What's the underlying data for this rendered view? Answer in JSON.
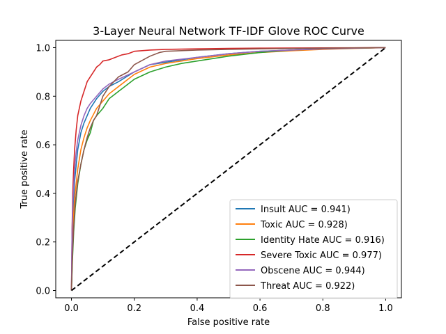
{
  "chart_data": {
    "type": "line",
    "title": "3-Layer Neural Network TF-IDF Glove ROC Curve",
    "xlabel": "False positive rate",
    "ylabel": "True positive rate",
    "xlim": [
      -0.05,
      1.05
    ],
    "ylim": [
      -0.03,
      1.03
    ],
    "xticks": [
      0.0,
      0.2,
      0.4,
      0.6,
      0.8,
      1.0
    ],
    "xtick_labels": [
      "0.0",
      "0.2",
      "0.4",
      "0.6",
      "0.8",
      "1.0"
    ],
    "yticks": [
      0.0,
      0.2,
      0.4,
      0.6,
      0.8,
      1.0
    ],
    "ytick_labels": [
      "0.0",
      "0.2",
      "0.4",
      "0.6",
      "0.8",
      "1.0"
    ],
    "grid": false,
    "legend_position": "lower-right",
    "series": [
      {
        "name": "Insult AUC = 0.941)",
        "color": "#1f77b4",
        "x": [
          0,
          0.002,
          0.005,
          0.01,
          0.02,
          0.03,
          0.04,
          0.05,
          0.06,
          0.08,
          0.1,
          0.12,
          0.15,
          0.2,
          0.25,
          0.3,
          0.4,
          0.5,
          0.6,
          0.7,
          0.8,
          0.9,
          1.0
        ],
        "y": [
          0,
          0.2,
          0.33,
          0.45,
          0.58,
          0.65,
          0.69,
          0.72,
          0.75,
          0.79,
          0.82,
          0.84,
          0.86,
          0.9,
          0.93,
          0.94,
          0.96,
          0.975,
          0.985,
          0.99,
          0.995,
          0.998,
          1.0
        ]
      },
      {
        "name": "Toxic AUC = 0.928)",
        "color": "#ff7f0e",
        "x": [
          0,
          0.002,
          0.005,
          0.01,
          0.02,
          0.03,
          0.04,
          0.05,
          0.06,
          0.08,
          0.1,
          0.12,
          0.15,
          0.2,
          0.25,
          0.3,
          0.4,
          0.5,
          0.6,
          0.7,
          0.8,
          0.9,
          1.0
        ],
        "y": [
          0,
          0.15,
          0.27,
          0.38,
          0.5,
          0.58,
          0.63,
          0.67,
          0.7,
          0.75,
          0.78,
          0.81,
          0.84,
          0.89,
          0.92,
          0.935,
          0.955,
          0.97,
          0.98,
          0.987,
          0.993,
          0.997,
          1.0
        ]
      },
      {
        "name": "Identity Hate AUC = 0.916)",
        "color": "#2ca02c",
        "x": [
          0,
          0.003,
          0.007,
          0.012,
          0.02,
          0.03,
          0.04,
          0.05,
          0.06,
          0.07,
          0.08,
          0.1,
          0.12,
          0.15,
          0.18,
          0.2,
          0.25,
          0.3,
          0.35,
          0.4,
          0.5,
          0.6,
          0.7,
          0.8,
          0.9,
          1.0
        ],
        "y": [
          0,
          0.12,
          0.24,
          0.34,
          0.44,
          0.52,
          0.58,
          0.62,
          0.65,
          0.7,
          0.72,
          0.75,
          0.79,
          0.82,
          0.85,
          0.87,
          0.9,
          0.92,
          0.935,
          0.945,
          0.965,
          0.98,
          0.99,
          0.995,
          0.998,
          1.0
        ]
      },
      {
        "name": "Severe Toxic AUC = 0.977)",
        "color": "#d62728",
        "x": [
          0,
          0.002,
          0.004,
          0.007,
          0.01,
          0.015,
          0.02,
          0.03,
          0.04,
          0.05,
          0.06,
          0.07,
          0.08,
          0.09,
          0.1,
          0.12,
          0.14,
          0.16,
          0.18,
          0.2,
          0.25,
          0.3,
          0.4,
          0.5,
          0.6,
          0.8,
          1.0
        ],
        "y": [
          0,
          0.25,
          0.4,
          0.5,
          0.58,
          0.66,
          0.72,
          0.78,
          0.82,
          0.86,
          0.88,
          0.9,
          0.92,
          0.93,
          0.945,
          0.95,
          0.96,
          0.97,
          0.975,
          0.985,
          0.99,
          0.993,
          0.995,
          0.997,
          0.998,
          0.999,
          1.0
        ]
      },
      {
        "name": "Obscene AUC = 0.944)",
        "color": "#9467bd",
        "x": [
          0,
          0.002,
          0.005,
          0.01,
          0.015,
          0.02,
          0.03,
          0.04,
          0.05,
          0.06,
          0.08,
          0.1,
          0.12,
          0.15,
          0.2,
          0.25,
          0.3,
          0.4,
          0.5,
          0.6,
          0.7,
          0.8,
          0.9,
          1.0
        ],
        "y": [
          0,
          0.25,
          0.38,
          0.5,
          0.57,
          0.62,
          0.68,
          0.72,
          0.75,
          0.77,
          0.8,
          0.83,
          0.85,
          0.87,
          0.9,
          0.93,
          0.945,
          0.96,
          0.975,
          0.985,
          0.99,
          0.995,
          0.998,
          1.0
        ]
      },
      {
        "name": "Threat AUC = 0.922)",
        "color": "#8c564b",
        "x": [
          0,
          0.003,
          0.007,
          0.012,
          0.02,
          0.03,
          0.04,
          0.05,
          0.06,
          0.07,
          0.08,
          0.09,
          0.1,
          0.12,
          0.15,
          0.18,
          0.2,
          0.25,
          0.28,
          0.3,
          0.4,
          0.5,
          0.6,
          0.8,
          1.0
        ],
        "y": [
          0,
          0.14,
          0.26,
          0.36,
          0.45,
          0.52,
          0.58,
          0.63,
          0.67,
          0.7,
          0.72,
          0.76,
          0.8,
          0.84,
          0.88,
          0.9,
          0.93,
          0.965,
          0.98,
          0.985,
          0.99,
          0.993,
          0.995,
          0.998,
          1.0
        ]
      }
    ],
    "reference_line": {
      "color": "#000000",
      "style": "dashed",
      "x": [
        0,
        1
      ],
      "y": [
        0,
        1
      ]
    }
  }
}
